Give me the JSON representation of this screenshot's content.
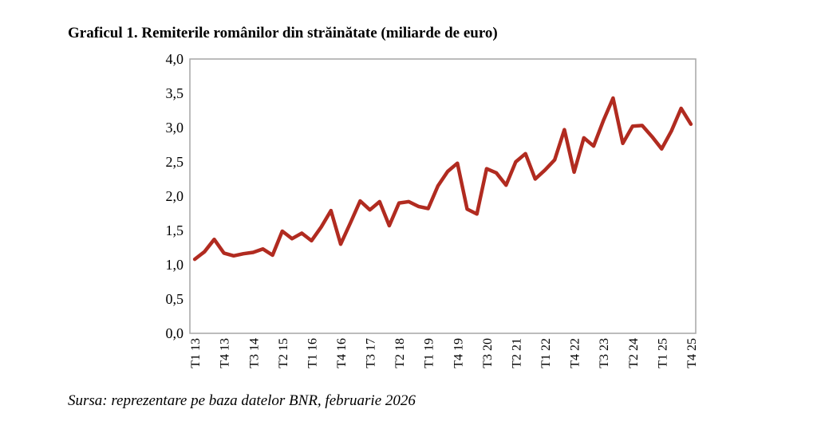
{
  "page": {
    "title": "Graficul 1. Remiterile românilor din străinătate (miliarde de euro)",
    "source": "Sursa: reprezentare pe baza datelor BNR, februarie 2026"
  },
  "chart_data": {
    "type": "line",
    "title": "Graficul 1. Remiterile românilor din străinătate (miliarde de euro)",
    "xlabel": "",
    "ylabel": "",
    "ylim": [
      0,
      4
    ],
    "y_tick_step": 0.5,
    "y_ticks": [
      "0,0",
      "0,5",
      "1,0",
      "1,5",
      "2,0",
      "2,5",
      "3,0",
      "3,5",
      "4,0"
    ],
    "x_tick_every": 3,
    "x_tick_labels": [
      "T1 13",
      "T4 13",
      "T3 14",
      "T2 15",
      "T1 16",
      "T4 16",
      "T3 17",
      "T2 18",
      "T1 19",
      "T4 19",
      "T3 20",
      "T2 21",
      "T1 22",
      "T4 22",
      "T3 23",
      "T2 24",
      "T1 25",
      "T4 25"
    ],
    "categories": [
      "T1 13",
      "T2 13",
      "T3 13",
      "T4 13",
      "T1 14",
      "T2 14",
      "T3 14",
      "T4 14",
      "T1 15",
      "T2 15",
      "T3 15",
      "T4 15",
      "T1 16",
      "T2 16",
      "T3 16",
      "T4 16",
      "T1 17",
      "T2 17",
      "T3 17",
      "T4 17",
      "T1 18",
      "T2 18",
      "T3 18",
      "T4 18",
      "T1 19",
      "T2 19",
      "T3 19",
      "T4 19",
      "T1 20",
      "T2 20",
      "T3 20",
      "T4 20",
      "T1 21",
      "T2 21",
      "T3 21",
      "T4 21",
      "T1 22",
      "T2 22",
      "T3 22",
      "T4 22",
      "T1 23",
      "T2 23",
      "T3 23",
      "T4 23",
      "T1 24",
      "T2 24",
      "T3 24",
      "T4 24",
      "T1 25",
      "T2 25",
      "T3 25",
      "T4 25"
    ],
    "series": [
      {
        "name": "Remiterile românilor din străinătate (miliarde de euro)",
        "color": "#b12b20",
        "values": [
          1.08,
          1.19,
          1.37,
          1.17,
          1.13,
          1.16,
          1.18,
          1.23,
          1.14,
          1.49,
          1.38,
          1.46,
          1.35,
          1.55,
          1.79,
          1.3,
          1.61,
          1.93,
          1.8,
          1.92,
          1.57,
          1.9,
          1.92,
          1.85,
          1.82,
          2.15,
          2.36,
          2.48,
          1.81,
          1.74,
          2.4,
          2.34,
          2.16,
          2.5,
          2.62,
          2.25,
          2.38,
          2.53,
          2.97,
          2.35,
          2.85,
          2.73,
          3.1,
          3.43,
          2.77,
          3.02,
          3.03,
          2.87,
          2.69,
          2.95,
          3.28,
          3.05
        ]
      }
    ],
    "grid": false,
    "legend": "none",
    "axis_color": "#a6a6a6",
    "decimal_comma": true
  }
}
